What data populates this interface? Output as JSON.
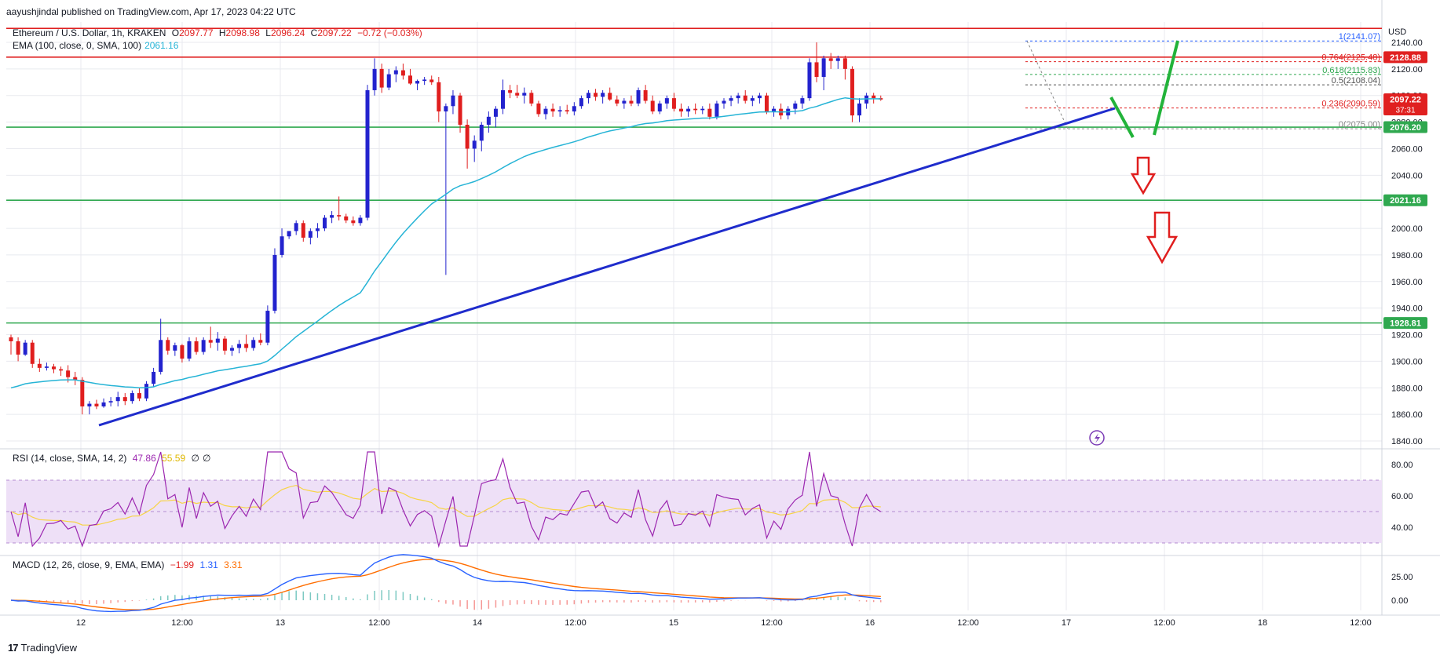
{
  "header": "aayushjindal published on TradingView.com, Apr 17, 2023 04:22 UTC",
  "footer": {
    "brand": "TradingView",
    "logo_icon": "tradingview-logo-icon"
  },
  "legend_main": {
    "symbol": "Ethereum / U.S. Dollar, 1h, KRAKEN",
    "o_label": "O",
    "o": "2097.77",
    "h_label": "H",
    "h": "2098.98",
    "l_label": "L",
    "l": "2096.24",
    "c_label": "C",
    "c": "2097.22",
    "chg": "−0.72 (−0.03%)"
  },
  "legend_ema": {
    "label": "EMA (100, close, 0, SMA, 100)",
    "value": "2061.16"
  },
  "legend_rsi": {
    "label": "RSI (14, close, SMA, 14, 2)",
    "v1": "47.86",
    "v2": "55.59",
    "v3": "∅",
    "v4": "∅"
  },
  "legend_macd": {
    "label": "MACD (12, 26, close, 9, EMA, EMA)",
    "v1": "−1.99",
    "v2": "1.31",
    "v3": "3.31"
  },
  "colors": {
    "up": "#2323ce",
    "down": "#e01e1e",
    "ema": "#26b4d6",
    "trend": "#1f2ccc",
    "support": "#2fa84f",
    "resistance": "#e02020",
    "rsi_line": "#9c27b0",
    "rsi_ma": "#f7d445",
    "rsi_band": "#eee0f7",
    "macd": "#2962ff",
    "signal": "#ff6d00",
    "grid": "#e8eaef",
    "arrow_green": "#22b33a"
  },
  "chart_data": {
    "type": "candlestick",
    "currency": "USD",
    "price_axis": {
      "ticks": [
        "2140.00",
        "2120.00",
        "2100.00",
        "2080.00",
        "2060.00",
        "2040.00",
        "2020.00",
        "2000.00",
        "1980.00",
        "1960.00",
        "1940.00",
        "1920.00",
        "1900.00",
        "1880.00",
        "1860.00",
        "1840.00"
      ],
      "range": [
        1840,
        2150
      ]
    },
    "time_axis": {
      "labels": [
        "12",
        "12:00",
        "13",
        "12:00",
        "14",
        "12:00",
        "15",
        "12:00",
        "16",
        "12:00",
        "17",
        "12:00",
        "18",
        "12:00"
      ]
    },
    "price_badges": [
      {
        "value": "2128.88",
        "color": "#e02020"
      },
      {
        "value": "2097.22",
        "sub": "37:31",
        "color": "#e02020"
      },
      {
        "value": "2076.20",
        "color": "#2fa84f"
      },
      {
        "value": "2021.16",
        "color": "#2fa84f"
      },
      {
        "value": "1928.81",
        "color": "#2fa84f"
      }
    ],
    "horizontal_levels": [
      {
        "price": 2150.5,
        "color": "#e02020"
      },
      {
        "price": 2128.88,
        "color": "#e02020"
      },
      {
        "price": 2076.2,
        "color": "#2fa84f"
      },
      {
        "price": 2021.16,
        "color": "#2fa84f"
      },
      {
        "price": 1928.81,
        "color": "#2fa84f"
      }
    ],
    "fib_levels": [
      {
        "ratio": "1",
        "price": 2141.07,
        "text": "1(2141.07)",
        "color": "#2962ff"
      },
      {
        "ratio": "0.764",
        "price": 2125.48,
        "text": "0.764(2125.48)",
        "color": "#e02020"
      },
      {
        "ratio": "0.618",
        "price": 2115.83,
        "text": "0.618(2115.83)",
        "color": "#2fa84f"
      },
      {
        "ratio": "0.5",
        "price": 2108.04,
        "text": "0.5(2108.04)",
        "color": "#555555"
      },
      {
        "ratio": "0.236",
        "price": 2090.59,
        "text": "0.236(2090.59)",
        "color": "#e02020"
      },
      {
        "ratio": "0",
        "price": 2075.0,
        "text": "0(2075.00)",
        "color": "#888888"
      }
    ],
    "candles": [
      [
        1918,
        1920,
        1905,
        1915
      ],
      [
        1915,
        1918,
        1900,
        1905
      ],
      [
        1905,
        1916,
        1904,
        1914
      ],
      [
        1914,
        1916,
        1895,
        1898
      ],
      [
        1898,
        1902,
        1892,
        1895
      ],
      [
        1895,
        1899,
        1893,
        1896
      ],
      [
        1896,
        1898,
        1891,
        1894
      ],
      [
        1894,
        1896,
        1889,
        1893
      ],
      [
        1893,
        1897,
        1884,
        1888
      ],
      [
        1888,
        1892,
        1882,
        1886
      ],
      [
        1886,
        1888,
        1860,
        1866
      ],
      [
        1866,
        1870,
        1860,
        1868
      ],
      [
        1868,
        1871,
        1864,
        1866
      ],
      [
        1866,
        1872,
        1865,
        1869
      ],
      [
        1869,
        1873,
        1866,
        1870
      ],
      [
        1870,
        1877,
        1866,
        1873
      ],
      [
        1873,
        1876,
        1867,
        1870
      ],
      [
        1870,
        1878,
        1868,
        1876
      ],
      [
        1876,
        1880,
        1870,
        1872
      ],
      [
        1872,
        1885,
        1870,
        1883
      ],
      [
        1883,
        1895,
        1881,
        1892
      ],
      [
        1892,
        1932,
        1890,
        1916
      ],
      [
        1916,
        1918,
        1905,
        1908
      ],
      [
        1908,
        1914,
        1904,
        1912
      ],
      [
        1912,
        1913,
        1899,
        1902
      ],
      [
        1902,
        1918,
        1900,
        1915
      ],
      [
        1915,
        1918,
        1905,
        1907
      ],
      [
        1907,
        1918,
        1905,
        1916
      ],
      [
        1916,
        1926,
        1910,
        1914
      ],
      [
        1914,
        1922,
        1908,
        1917
      ],
      [
        1917,
        1919,
        1905,
        1908
      ],
      [
        1908,
        1912,
        1904,
        1910
      ],
      [
        1910,
        1916,
        1906,
        1913
      ],
      [
        1913,
        1920,
        1907,
        1910
      ],
      [
        1910,
        1918,
        1908,
        1916
      ],
      [
        1916,
        1921,
        1912,
        1914
      ],
      [
        1914,
        1942,
        1912,
        1938
      ],
      [
        1938,
        1985,
        1936,
        1980
      ],
      [
        1980,
        2000,
        1978,
        1994
      ],
      [
        1994,
        1998,
        1992,
        1998
      ],
      [
        1998,
        2006,
        1995,
        2004
      ],
      [
        2004,
        2006,
        1990,
        1993
      ],
      [
        1993,
        2000,
        1988,
        1998
      ],
      [
        1998,
        2004,
        1993,
        2000
      ],
      [
        2000,
        2010,
        1998,
        2008
      ],
      [
        2008,
        2013,
        2004,
        2010
      ],
      [
        2010,
        2024,
        2006,
        2009
      ],
      [
        2009,
        2011,
        2004,
        2006
      ],
      [
        2006,
        2009,
        2002,
        2004
      ],
      [
        2004,
        2010,
        2002,
        2008
      ],
      [
        2008,
        2108,
        2006,
        2104
      ],
      [
        2104,
        2128,
        2100,
        2120
      ],
      [
        2120,
        2124,
        2102,
        2106
      ],
      [
        2106,
        2120,
        2104,
        2116
      ],
      [
        2116,
        2122,
        2110,
        2119
      ],
      [
        2119,
        2124,
        2112,
        2115
      ],
      [
        2115,
        2120,
        2108,
        2109
      ],
      [
        2109,
        2112,
        2104,
        2111
      ],
      [
        2111,
        2114,
        2108,
        2112
      ],
      [
        2112,
        2115,
        2108,
        2110
      ],
      [
        2110,
        2114,
        2080,
        2088
      ],
      [
        2088,
        2094,
        1965,
        2092
      ],
      [
        2092,
        2104,
        2086,
        2100
      ],
      [
        2100,
        2102,
        2072,
        2078
      ],
      [
        2078,
        2082,
        2045,
        2060
      ],
      [
        2060,
        2070,
        2050,
        2066
      ],
      [
        2066,
        2080,
        2058,
        2078
      ],
      [
        2078,
        2088,
        2072,
        2084
      ],
      [
        2084,
        2092,
        2076,
        2090
      ],
      [
        2090,
        2112,
        2086,
        2104
      ],
      [
        2104,
        2108,
        2098,
        2102
      ],
      [
        2102,
        2108,
        2098,
        2100
      ],
      [
        2100,
        2106,
        2094,
        2102
      ],
      [
        2102,
        2104,
        2092,
        2094
      ],
      [
        2094,
        2096,
        2084,
        2086
      ],
      [
        2086,
        2092,
        2082,
        2090
      ],
      [
        2090,
        2094,
        2084,
        2088
      ],
      [
        2088,
        2092,
        2084,
        2089
      ],
      [
        2089,
        2093,
        2086,
        2088
      ],
      [
        2088,
        2095,
        2085,
        2092
      ],
      [
        2092,
        2100,
        2090,
        2098
      ],
      [
        2098,
        2104,
        2094,
        2102
      ],
      [
        2102,
        2105,
        2096,
        2099
      ],
      [
        2099,
        2104,
        2094,
        2102
      ],
      [
        2102,
        2106,
        2096,
        2097
      ],
      [
        2097,
        2100,
        2092,
        2094
      ],
      [
        2094,
        2098,
        2090,
        2096
      ],
      [
        2096,
        2100,
        2092,
        2094
      ],
      [
        2094,
        2106,
        2092,
        2104
      ],
      [
        2104,
        2108,
        2094,
        2096
      ],
      [
        2096,
        2100,
        2086,
        2088
      ],
      [
        2088,
        2096,
        2086,
        2094
      ],
      [
        2094,
        2100,
        2090,
        2098
      ],
      [
        2098,
        2102,
        2088,
        2090
      ],
      [
        2090,
        2094,
        2084,
        2088
      ],
      [
        2088,
        2092,
        2084,
        2090
      ],
      [
        2090,
        2094,
        2086,
        2089
      ],
      [
        2089,
        2092,
        2086,
        2090
      ],
      [
        2090,
        2094,
        2082,
        2084
      ],
      [
        2084,
        2096,
        2082,
        2094
      ],
      [
        2094,
        2098,
        2090,
        2096
      ],
      [
        2096,
        2100,
        2092,
        2098
      ],
      [
        2098,
        2102,
        2094,
        2100
      ],
      [
        2100,
        2104,
        2094,
        2096
      ],
      [
        2096,
        2100,
        2092,
        2098
      ],
      [
        2098,
        2102,
        2094,
        2100
      ],
      [
        2100,
        2102,
        2086,
        2088
      ],
      [
        2088,
        2092,
        2084,
        2090
      ],
      [
        2090,
        2094,
        2082,
        2085
      ],
      [
        2085,
        2092,
        2082,
        2090
      ],
      [
        2090,
        2096,
        2086,
        2094
      ],
      [
        2094,
        2100,
        2090,
        2098
      ],
      [
        2098,
        2128,
        2096,
        2125
      ],
      [
        2125,
        2140,
        2110,
        2114
      ],
      [
        2114,
        2130,
        2104,
        2128
      ],
      [
        2128,
        2132,
        2120,
        2126
      ],
      [
        2126,
        2130,
        2120,
        2128
      ],
      [
        2128,
        2130,
        2112,
        2120
      ],
      [
        2120,
        2122,
        2080,
        2085
      ],
      [
        2085,
        2098,
        2080,
        2094
      ],
      [
        2094,
        2102,
        2090,
        2100
      ],
      [
        2100,
        2102,
        2094,
        2098
      ],
      [
        2098,
        2100,
        2096,
        2097
      ]
    ],
    "ema_label": "EMA 100",
    "rsi": {
      "levels": [
        "80.00",
        "60.00",
        "40.00"
      ],
      "band": [
        30,
        70
      ],
      "mid": 50,
      "range": [
        24,
        92
      ]
    },
    "macd": {
      "ticks": [
        "25.00",
        "0.00"
      ],
      "range": [
        -8,
        42
      ]
    }
  }
}
